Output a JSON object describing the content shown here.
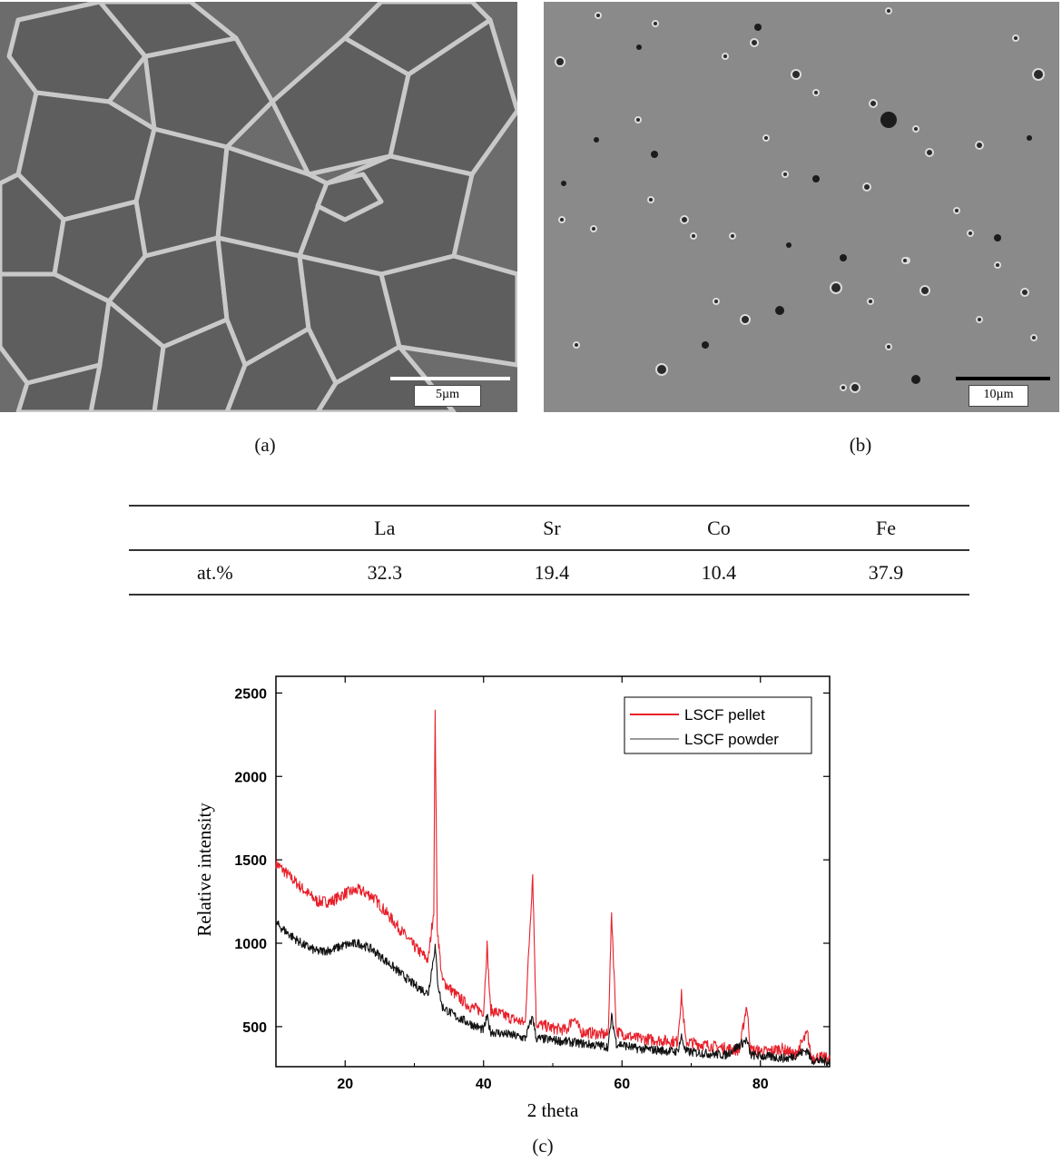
{
  "figure": {
    "panel_a": {
      "scalebar_label": "5µm",
      "caption": "(a)"
    },
    "panel_b": {
      "scalebar_label": "10µm",
      "caption": "(b)"
    },
    "panel_c": {
      "caption": "(c)"
    }
  },
  "eds_table": {
    "columns": [
      "",
      "La",
      "Sr",
      "Co",
      "Fe"
    ],
    "rows": [
      {
        "label": "at.%",
        "values": [
          "32.3",
          "19.4",
          "10.4",
          "37.9"
        ]
      }
    ]
  },
  "chart_data": {
    "type": "line",
    "title": "",
    "xlabel": "2 theta",
    "ylabel": "Relative intensity",
    "xlim": [
      10,
      90
    ],
    "ylim": [
      260,
      2600
    ],
    "x_ticks": [
      20,
      40,
      60,
      80
    ],
    "y_ticks": [
      500,
      1000,
      1500,
      2000,
      2500
    ],
    "legend_position": "top-right",
    "series": [
      {
        "name": "LSCF pellet",
        "color": "#e8202a",
        "points": [
          [
            10,
            1480
          ],
          [
            12,
            1400
          ],
          [
            14,
            1320
          ],
          [
            16,
            1250
          ],
          [
            18,
            1250
          ],
          [
            20,
            1300
          ],
          [
            22,
            1320
          ],
          [
            24,
            1280
          ],
          [
            26,
            1180
          ],
          [
            28,
            1080
          ],
          [
            30,
            980
          ],
          [
            32,
            900
          ],
          [
            32.8,
            1200
          ],
          [
            33.0,
            2420
          ],
          [
            33.3,
            1100
          ],
          [
            34,
            780
          ],
          [
            36,
            690
          ],
          [
            38,
            620
          ],
          [
            40,
            590
          ],
          [
            40.5,
            990
          ],
          [
            41,
            600
          ],
          [
            44,
            550
          ],
          [
            46,
            520
          ],
          [
            47.1,
            1420
          ],
          [
            47.6,
            520
          ],
          [
            50,
            490
          ],
          [
            52,
            480
          ],
          [
            53,
            560
          ],
          [
            54,
            470
          ],
          [
            56,
            460
          ],
          [
            58,
            450
          ],
          [
            58.5,
            1180
          ],
          [
            59.2,
            470
          ],
          [
            62,
            430
          ],
          [
            65,
            420
          ],
          [
            68,
            410
          ],
          [
            68.6,
            690
          ],
          [
            69.2,
            410
          ],
          [
            72,
            390
          ],
          [
            75,
            370
          ],
          [
            77,
            360
          ],
          [
            78,
            630
          ],
          [
            78.6,
            360
          ],
          [
            81,
            350
          ],
          [
            83,
            370
          ],
          [
            85,
            330
          ],
          [
            86.8,
            460
          ],
          [
            87.3,
            320
          ],
          [
            90,
            310
          ]
        ]
      },
      {
        "name": "LSCF powder",
        "color": "#111111",
        "points": [
          [
            10,
            1120
          ],
          [
            12,
            1050
          ],
          [
            14,
            990
          ],
          [
            16,
            950
          ],
          [
            18,
            960
          ],
          [
            20,
            990
          ],
          [
            22,
            1000
          ],
          [
            24,
            960
          ],
          [
            26,
            890
          ],
          [
            28,
            820
          ],
          [
            30,
            750
          ],
          [
            32,
            700
          ],
          [
            33.0,
            980
          ],
          [
            33.4,
            760
          ],
          [
            34,
            620
          ],
          [
            36,
            560
          ],
          [
            38,
            520
          ],
          [
            40,
            480
          ],
          [
            40.5,
            560
          ],
          [
            41,
            470
          ],
          [
            44,
            450
          ],
          [
            46,
            430
          ],
          [
            47.1,
            560
          ],
          [
            47.6,
            430
          ],
          [
            50,
            420
          ],
          [
            52,
            410
          ],
          [
            54,
            400
          ],
          [
            56,
            390
          ],
          [
            58,
            380
          ],
          [
            58.5,
            560
          ],
          [
            59.2,
            400
          ],
          [
            62,
            370
          ],
          [
            65,
            360
          ],
          [
            68,
            350
          ],
          [
            68.6,
            440
          ],
          [
            69.2,
            350
          ],
          [
            72,
            340
          ],
          [
            75,
            330
          ],
          [
            78,
            420
          ],
          [
            78.6,
            330
          ],
          [
            81,
            320
          ],
          [
            84,
            310
          ],
          [
            86.8,
            360
          ],
          [
            87.3,
            300
          ],
          [
            90,
            290
          ]
        ]
      }
    ]
  }
}
